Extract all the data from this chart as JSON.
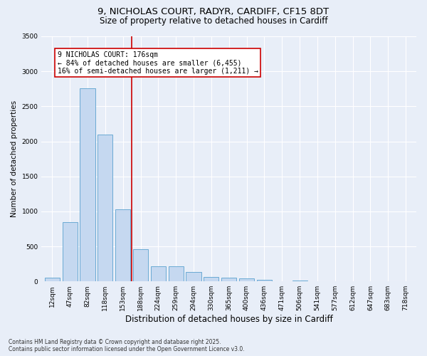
{
  "title_line1": "9, NICHOLAS COURT, RADYR, CARDIFF, CF15 8DT",
  "title_line2": "Size of property relative to detached houses in Cardiff",
  "xlabel": "Distribution of detached houses by size in Cardiff",
  "ylabel": "Number of detached properties",
  "categories": [
    "12sqm",
    "47sqm",
    "82sqm",
    "118sqm",
    "153sqm",
    "188sqm",
    "224sqm",
    "259sqm",
    "294sqm",
    "330sqm",
    "365sqm",
    "400sqm",
    "436sqm",
    "471sqm",
    "506sqm",
    "541sqm",
    "577sqm",
    "612sqm",
    "647sqm",
    "683sqm",
    "718sqm"
  ],
  "values": [
    55,
    850,
    2760,
    2100,
    1030,
    455,
    215,
    215,
    130,
    65,
    50,
    40,
    25,
    0,
    10,
    0,
    0,
    0,
    0,
    0,
    0
  ],
  "bar_color": "#c5d8f0",
  "bar_edge_color": "#6aaad4",
  "vline_color": "#cc0000",
  "annotation_title": "9 NICHOLAS COURT: 176sqm",
  "annotation_line1": "← 84% of detached houses are smaller (6,455)",
  "annotation_line2": "16% of semi-detached houses are larger (1,211) →",
  "annotation_box_color": "#cc0000",
  "ylim": [
    0,
    3500
  ],
  "yticks": [
    0,
    500,
    1000,
    1500,
    2000,
    2500,
    3000,
    3500
  ],
  "footer_line1": "Contains HM Land Registry data © Crown copyright and database right 2025.",
  "footer_line2": "Contains public sector information licensed under the Open Government Licence v3.0.",
  "bg_color": "#e8eef8",
  "plot_bg_color": "#e8eef8"
}
